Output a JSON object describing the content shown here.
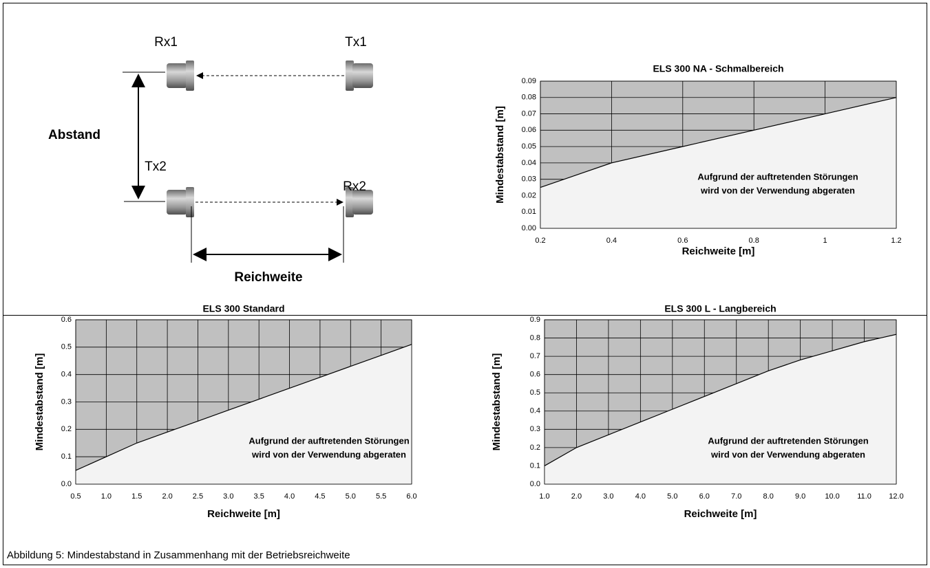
{
  "diagram": {
    "rx1": "Rx1",
    "tx1": "Tx1",
    "tx2": "Tx2",
    "rx2": "Rx2",
    "distance": "Abstand",
    "range": "Reichweite"
  },
  "chart_data": [
    {
      "type": "area",
      "title": "ELS 300 NA - Schmalbereich",
      "x_label": "Reichweite [m]",
      "y_label": "Mindestabstand [m]",
      "x": [
        0.2,
        0.4,
        0.6,
        0.8,
        1,
        1.2
      ],
      "values": [
        0.025,
        0.04,
        0.05,
        0.06,
        0.07,
        0.08
      ],
      "xlim": [
        0.2,
        1.2
      ],
      "xticks": [
        0.2,
        0.4,
        0.6,
        0.8,
        1,
        1.2
      ],
      "ylim": [
        0,
        0.09
      ],
      "yticks": [
        {
          "value": 0,
          "label": "0.00"
        },
        {
          "value": 0.01,
          "label": "0.01"
        },
        {
          "value": 0.02,
          "label": "0.02"
        },
        {
          "value": 0.03,
          "label": "0.03"
        },
        {
          "value": 0.04,
          "label": "0.04"
        },
        {
          "value": 0.05,
          "label": "0.05"
        },
        {
          "value": 0.06,
          "label": "0.06"
        },
        {
          "value": 0.07,
          "label": "0.07"
        },
        {
          "value": 0.08,
          "label": "0.08"
        },
        {
          "value": 0.09,
          "label": "0.09"
        }
      ],
      "annotation": [
        "Aufgrund der auftretenden Störungen",
        "wird von der Verwendung abgeraten"
      ],
      "grid": true,
      "color": "#c0c0c0"
    },
    {
      "type": "area",
      "title": "ELS 300 Standard",
      "x_label": "Reichweite [m]",
      "y_label": "Mindestabstand [m]",
      "x": [
        0.5,
        1,
        1.5,
        2,
        2.5,
        3,
        3.5,
        4,
        4.5,
        5,
        5.5,
        6
      ],
      "values": [
        0.05,
        0.1,
        0.15,
        0.19,
        0.23,
        0.27,
        0.31,
        0.35,
        0.39,
        0.43,
        0.47,
        0.51
      ],
      "xlim": [
        0.5,
        6
      ],
      "xticks": [
        0.5,
        {
          "value": 1,
          "label": "1.0"
        },
        1.5,
        {
          "value": 2,
          "label": "2.0"
        },
        2.5,
        {
          "value": 3,
          "label": "3.0"
        },
        3.5,
        {
          "value": 4,
          "label": "4.0"
        },
        4.5,
        {
          "value": 5,
          "label": "5.0"
        },
        5.5,
        {
          "value": 6,
          "label": "6.0"
        }
      ],
      "ylim": [
        0,
        0.6
      ],
      "yticks": [
        {
          "value": 0,
          "label": "0.0"
        },
        0.1,
        0.2,
        0.3,
        0.4,
        0.5,
        0.6
      ],
      "annotation": [
        "Aufgrund der auftretenden Störungen",
        "wird von der Verwendung abgeraten"
      ],
      "grid": true,
      "color": "#c0c0c0"
    },
    {
      "type": "area",
      "title": "ELS 300 L - Langbereich",
      "x_label": "Reichweite [m]",
      "y_label": "Mindestabstand [m]",
      "x": [
        1,
        2,
        3,
        4,
        5,
        6,
        7,
        8,
        9,
        10,
        11,
        12
      ],
      "values": [
        0.1,
        0.2,
        0.27,
        0.34,
        0.41,
        0.48,
        0.55,
        0.62,
        0.68,
        0.73,
        0.78,
        0.82
      ],
      "xlim": [
        1,
        12
      ],
      "xticks": [
        {
          "value": 1,
          "label": "1.0"
        },
        {
          "value": 2,
          "label": "2.0"
        },
        {
          "value": 3,
          "label": "3.0"
        },
        {
          "value": 4,
          "label": "4.0"
        },
        {
          "value": 5,
          "label": "5.0"
        },
        {
          "value": 6,
          "label": "6.0"
        },
        {
          "value": 7,
          "label": "7.0"
        },
        {
          "value": 8,
          "label": "8.0"
        },
        {
          "value": 9,
          "label": "9.0"
        },
        {
          "value": 10,
          "label": "10.0"
        },
        {
          "value": 11,
          "label": "11.0"
        },
        {
          "value": 12,
          "label": "12.0"
        }
      ],
      "ylim": [
        0,
        0.9
      ],
      "yticks": [
        {
          "value": 0,
          "label": "0.0"
        },
        0.1,
        0.2,
        0.3,
        0.4,
        0.5,
        0.6,
        0.7,
        0.8,
        0.9
      ],
      "annotation": [
        "Aufgrund der auftretenden Störungen",
        "wird von der Verwendung abgeraten"
      ],
      "grid": true,
      "color": "#c0c0c0"
    }
  ],
  "caption": "Abbildung 5: Mindestabstand in Zusammenhang mit der Betriebsreichweite"
}
